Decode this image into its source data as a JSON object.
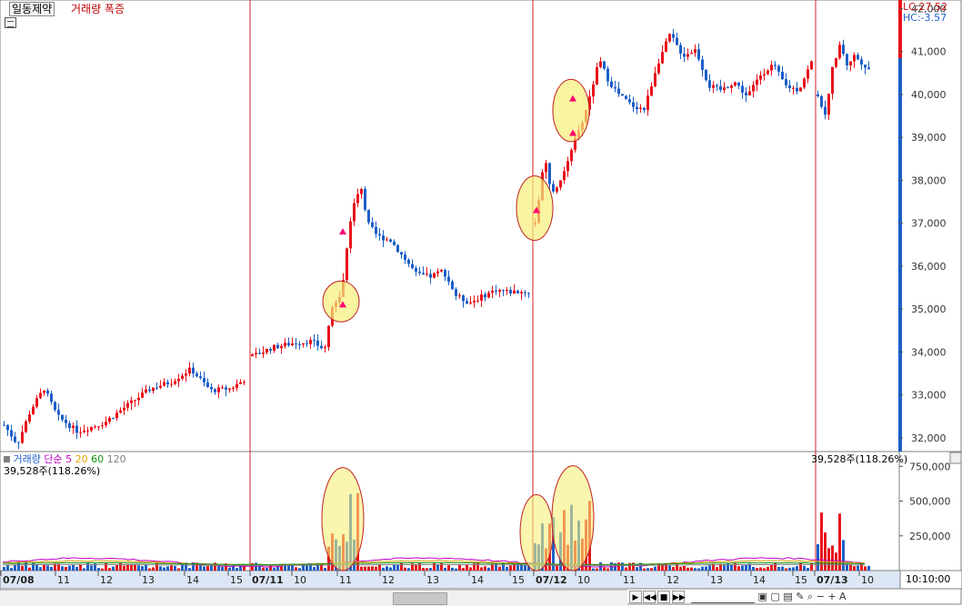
{
  "header": {
    "stock_name": "일동제약",
    "indicator_label": "거래량 폭증",
    "lc_label": "LC:27.52",
    "hc_label": "HC:-3.57"
  },
  "volume_panel": {
    "label": "거래량",
    "ma_label": "단순",
    "ma_periods": [
      "5",
      "20",
      "60",
      "120"
    ],
    "current_value_left": "39,528주(118.26%)",
    "current_value_right": "39,528주(118.26%)"
  },
  "time_axis": {
    "labels": [
      "07/08",
      "11",
      "12",
      "13",
      "14",
      "15",
      "07/11",
      "10",
      "11",
      "12",
      "13",
      "14",
      "15",
      "07/12",
      "10",
      "11",
      "12",
      "13",
      "14",
      "15",
      "07/13",
      "10"
    ],
    "current_time": "10:10:00"
  },
  "colors": {
    "up": "#e8131b",
    "down": "#1d5fc7",
    "ma5": "#c000c0",
    "ma20": "#e8a000",
    "ma60": "#109010",
    "ma120": "#808080",
    "highlight": "#f7f07a",
    "arrow": "#ff0070"
  },
  "chart_data": {
    "type": "candlestick",
    "title": "일동제약",
    "price_axis": {
      "ticks": [
        32000,
        33000,
        34000,
        35000,
        36000,
        37000,
        38000,
        39000,
        40000,
        41000,
        42000
      ],
      "range": [
        31700,
        42200
      ]
    },
    "volume_axis": {
      "ticks": [
        250000,
        500000,
        750000
      ],
      "range": [
        0,
        850000
      ]
    },
    "day_separators": [
      "07/11",
      "07/12",
      "07/13"
    ],
    "volume_spike_markers": [
      {
        "session": "07/11",
        "time": "11",
        "price": 35100
      },
      {
        "session": "07/11",
        "time": "11",
        "price": 36800
      },
      {
        "session": "07/12",
        "time": "09",
        "price": 37300
      },
      {
        "session": "07/12",
        "time": "10",
        "price": 39100
      },
      {
        "session": "07/12",
        "time": "10",
        "price": 39900
      }
    ],
    "highlighted_regions": [
      {
        "session": "07/11",
        "time": "11",
        "price_range": [
          34700,
          35650
        ]
      },
      {
        "session": "07/12",
        "time": "09",
        "price_range": [
          36600,
          38100
        ]
      },
      {
        "session": "07/12",
        "time": "10",
        "price_range": [
          38900,
          40350
        ]
      }
    ],
    "price_segments": [
      {
        "session": "07/08",
        "points": [
          [
            0,
            32300
          ],
          [
            4,
            31850
          ],
          [
            8,
            32650
          ],
          [
            12,
            33150
          ],
          [
            16,
            32500
          ],
          [
            22,
            32150
          ],
          [
            30,
            32350
          ],
          [
            36,
            32700
          ],
          [
            44,
            33150
          ],
          [
            50,
            33300
          ],
          [
            56,
            33600
          ],
          [
            62,
            33100
          ],
          [
            68,
            33150
          ],
          [
            72,
            33350
          ]
        ]
      },
      {
        "session": "07/11",
        "points": [
          [
            0,
            33900
          ],
          [
            6,
            34100
          ],
          [
            12,
            34200
          ],
          [
            18,
            34250
          ],
          [
            22,
            34050
          ],
          [
            24,
            35000
          ],
          [
            27,
            35300
          ],
          [
            30,
            37200
          ],
          [
            33,
            37900
          ],
          [
            35,
            37000
          ],
          [
            38,
            36700
          ],
          [
            42,
            36600
          ],
          [
            46,
            36200
          ],
          [
            50,
            35800
          ],
          [
            54,
            35750
          ],
          [
            58,
            35900
          ],
          [
            62,
            35300
          ],
          [
            66,
            35150
          ],
          [
            70,
            35300
          ],
          [
            74,
            35450
          ],
          [
            78,
            35400
          ],
          [
            84,
            35400
          ]
        ]
      },
      {
        "session": "07/12",
        "points": [
          [
            0,
            37000
          ],
          [
            3,
            38500
          ],
          [
            5,
            37700
          ],
          [
            8,
            37950
          ],
          [
            11,
            38700
          ],
          [
            14,
            39200
          ],
          [
            17,
            39950
          ],
          [
            20,
            40800
          ],
          [
            23,
            40300
          ],
          [
            26,
            40000
          ],
          [
            30,
            39750
          ],
          [
            34,
            39650
          ],
          [
            38,
            40700
          ],
          [
            42,
            41400
          ],
          [
            46,
            40900
          ],
          [
            50,
            41050
          ],
          [
            54,
            40200
          ],
          [
            58,
            40100
          ],
          [
            62,
            40300
          ],
          [
            66,
            39950
          ],
          [
            70,
            40450
          ],
          [
            74,
            40700
          ],
          [
            78,
            40200
          ],
          [
            82,
            40100
          ],
          [
            86,
            40750
          ]
        ]
      },
      {
        "session": "07/13",
        "points": [
          [
            0,
            40000
          ],
          [
            3,
            39500
          ],
          [
            6,
            40600
          ],
          [
            9,
            41200
          ],
          [
            12,
            40700
          ],
          [
            15,
            40900
          ],
          [
            18,
            40750
          ],
          [
            21,
            40600
          ]
        ]
      }
    ],
    "volume_peaks": [
      {
        "session": "07/11",
        "time": "11",
        "value": 570000
      },
      {
        "session": "07/12",
        "time": "09",
        "value": 420000
      },
      {
        "session": "07/12",
        "time": "10",
        "value": 580000
      },
      {
        "session": "07/13",
        "time": "09",
        "value": 430000
      }
    ]
  }
}
